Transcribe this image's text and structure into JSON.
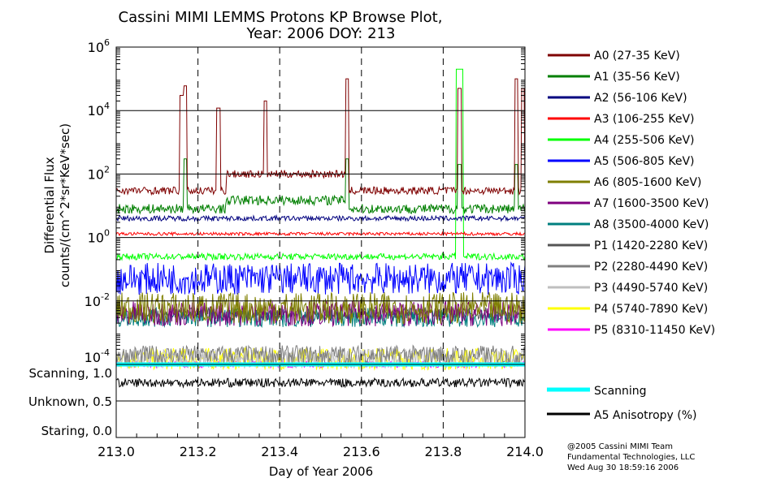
{
  "chart_data": {
    "type": "line",
    "title": "Cassini MIMI LEMMS Protons KP Browse Plot,",
    "subtitle": "Year: 2006 DOY: 213",
    "xlabel": "Day of Year 2006",
    "ylabel": [
      "Differential Flux",
      "counts/(cm^2*sr*KeV*sec)"
    ],
    "xlim": [
      213.0,
      214.0
    ],
    "xticks": [
      "213.0",
      "213.2",
      "213.4",
      "213.6",
      "213.8",
      "214.0"
    ],
    "xtick_values": [
      213.0,
      213.2,
      213.4,
      213.6,
      213.8,
      214.0
    ],
    "ylim_log": [
      -4,
      6
    ],
    "yticks": [
      {
        "base": "10",
        "exp": "6"
      },
      {
        "base": "10",
        "exp": "4"
      },
      {
        "base": "10",
        "exp": "2"
      },
      {
        "base": "10",
        "exp": "0"
      },
      {
        "base": "10",
        "exp": "-2"
      },
      {
        "base": "10",
        "exp": "-4"
      }
    ],
    "ytick_exps": [
      6,
      4,
      2,
      0,
      -2,
      -4
    ],
    "lower_panel": {
      "ylim": [
        0,
        1
      ],
      "ticks": [
        "Scanning, 1.0",
        "Unknown, 0.5",
        "Staring, 0.0"
      ],
      "tick_values": [
        1,
        0.5,
        0
      ]
    },
    "series": [
      {
        "name": "A0 (27-35 KeV)",
        "color": "#7f0000",
        "base": 30,
        "noise": 0.12,
        "plateau": [
          [
            213.27,
            213.56,
            100
          ]
        ],
        "spikes": [
          [
            213.16,
            30000.0
          ],
          [
            213.17,
            60000.0
          ],
          [
            213.25,
            12000.0
          ],
          [
            213.365,
            20000.0
          ],
          [
            213.565,
            100000.0
          ],
          [
            213.84,
            50000.0
          ],
          [
            213.98,
            100000.0
          ],
          [
            213.995,
            50000.0
          ]
        ]
      },
      {
        "name": "A1 (35-56 KeV)",
        "color": "#007f00",
        "base": 8,
        "noise": 0.15,
        "plateau": [
          [
            213.27,
            213.56,
            15
          ]
        ],
        "spikes": [
          [
            213.17,
            300
          ],
          [
            213.565,
            300
          ],
          [
            213.84,
            200
          ],
          [
            213.98,
            200
          ]
        ]
      },
      {
        "name": "A2 (56-106 KeV)",
        "color": "#00007f",
        "base": 4,
        "noise": 0.08,
        "plateau": [],
        "spikes": []
      },
      {
        "name": "A3 (106-255 KeV)",
        "color": "#ff0000",
        "base": 1.3,
        "noise": 0.05,
        "plateau": [],
        "spikes": []
      },
      {
        "name": "A4 (255-506 KeV)",
        "color": "#00ff00",
        "base": 0.25,
        "noise": 0.1,
        "plateau": [],
        "spikes": [
          [
            213.835,
            200000.0
          ],
          [
            213.84,
            200000.0
          ],
          [
            213.845,
            200000.0
          ]
        ]
      },
      {
        "name": "A5 (506-805 KeV)",
        "color": "#0000ff",
        "base": 0.05,
        "noise": 0.5,
        "plateau": [],
        "spikes": []
      },
      {
        "name": "A6 (805-1600 KeV)",
        "color": "#7f7f00",
        "base": 0.006,
        "noise": 0.5,
        "plateau": [],
        "spikes": []
      },
      {
        "name": "A7 (1600-3500 KeV)",
        "color": "#7f007f",
        "base": 0.004,
        "noise": 0.4,
        "plateau": [],
        "spikes": []
      },
      {
        "name": "A8 (3500-4000 KeV)",
        "color": "#007f7f",
        "base": 0.003,
        "noise": 0.3,
        "plateau": [],
        "spikes": []
      },
      {
        "name": "P1 (1420-2280 KeV)",
        "color": "#555555",
        "base": 0.004,
        "noise": 0.2,
        "plateau": [],
        "spikes": []
      },
      {
        "name": "P2 (2280-4490 KeV)",
        "color": "#7f7f7f",
        "base": 0.0002,
        "noise": 0.3,
        "plateau": [],
        "spikes": []
      },
      {
        "name": "P3 (4490-5740 KeV)",
        "color": "#bfbfbf",
        "base": 0.00015,
        "noise": 0.3,
        "plateau": [],
        "spikes": []
      },
      {
        "name": "P4 (5740-7890 KeV)",
        "color": "#ffff00",
        "base": 0.00015,
        "noise": 0.35,
        "plateau": [],
        "spikes": []
      },
      {
        "name": "P5 (8310-11450 KeV)",
        "color": "#ff00ff",
        "base": 0.0001,
        "noise": 0.1,
        "plateau": [],
        "spikes": []
      }
    ],
    "lower_series": [
      {
        "name": "Scanning",
        "color": "#00ffff",
        "value": 1.0
      },
      {
        "name": "A5 Anisotropy (%)",
        "color": "#000000",
        "base": 0.75,
        "noise": 0.06
      }
    ]
  },
  "credits": [
    "@2005 Cassini MIMI Team",
    "Fundamental Technologies, LLC",
    "Wed Aug 30 18:59:16 2006"
  ]
}
